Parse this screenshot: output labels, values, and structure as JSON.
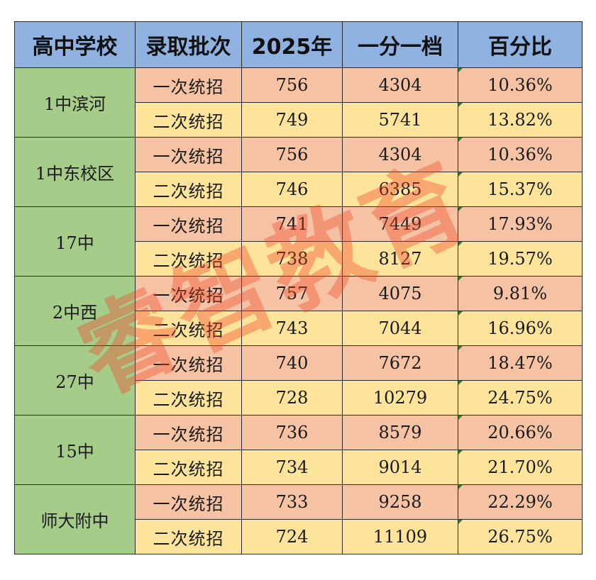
{
  "table": {
    "headers": [
      "高中学校",
      "录取批次",
      "2025年",
      "一分一档",
      "百分比"
    ],
    "schools": [
      {
        "name": "1中滨河",
        "rows": [
          {
            "batch": "一次统招",
            "score": "756",
            "rank": "4304",
            "percent": "10.36%"
          },
          {
            "batch": "二次统招",
            "score": "749",
            "rank": "5741",
            "percent": "13.82%"
          }
        ]
      },
      {
        "name": "1中东校区",
        "rows": [
          {
            "batch": "一次统招",
            "score": "756",
            "rank": "4304",
            "percent": "10.36%"
          },
          {
            "batch": "二次统招",
            "score": "746",
            "rank": "6385",
            "percent": "15.37%"
          }
        ]
      },
      {
        "name": "17中",
        "rows": [
          {
            "batch": "一次统招",
            "score": "741",
            "rank": "7449",
            "percent": "17.93%"
          },
          {
            "batch": "二次统招",
            "score": "738",
            "rank": "8127",
            "percent": "19.57%"
          }
        ]
      },
      {
        "name": "2中西",
        "rows": [
          {
            "batch": "一次统招",
            "score": "757",
            "rank": "4075",
            "percent": "9.81%"
          },
          {
            "batch": "二次统招",
            "score": "743",
            "rank": "7044",
            "percent": "16.96%"
          }
        ]
      },
      {
        "name": "27中",
        "rows": [
          {
            "batch": "一次统招",
            "score": "740",
            "rank": "7672",
            "percent": "18.47%"
          },
          {
            "batch": "二次统招",
            "score": "728",
            "rank": "10279",
            "percent": "24.75%"
          }
        ]
      },
      {
        "name": "15中",
        "rows": [
          {
            "batch": "一次统招",
            "score": "736",
            "rank": "8579",
            "percent": "20.66%"
          },
          {
            "batch": "二次统招",
            "score": "734",
            "rank": "9014",
            "percent": "21.70%"
          }
        ]
      },
      {
        "name": "师大附中",
        "rows": [
          {
            "batch": "一次统招",
            "score": "733",
            "rank": "9258",
            "percent": "22.29%"
          },
          {
            "batch": "二次统招",
            "score": "724",
            "rank": "11109",
            "percent": "26.75%"
          }
        ]
      }
    ]
  },
  "watermark": {
    "text": "睿智教育",
    "color": "#f04628"
  },
  "colors": {
    "header_bg": "#8fb2e0",
    "school_bg": "#a6cc8a",
    "first_batch_bg": "#f5c3a4",
    "second_batch_bg": "#fde49a",
    "corner_mark": "#2e7d32"
  }
}
